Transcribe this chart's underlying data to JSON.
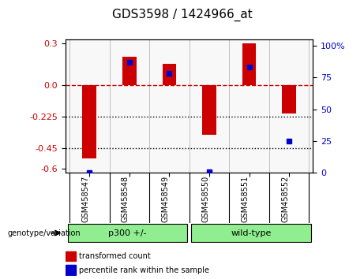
{
  "title": "GDS3598 / 1424966_at",
  "samples": [
    "GSM458547",
    "GSM458548",
    "GSM458549",
    "GSM458550",
    "GSM458551",
    "GSM458552"
  ],
  "red_values": [
    -0.525,
    0.205,
    0.155,
    -0.355,
    0.3,
    -0.205
  ],
  "blue_percentiles": [
    0.5,
    87.0,
    78.0,
    1.0,
    83.0,
    25.0
  ],
  "groups": [
    {
      "label": "p300 +/-",
      "samples": [
        "GSM458547",
        "GSM458548",
        "GSM458549"
      ],
      "color": "#90EE90"
    },
    {
      "label": "wild-type",
      "samples": [
        "GSM458550",
        "GSM458551",
        "GSM458552"
      ],
      "color": "#90EE90"
    }
  ],
  "group_label": "genotype/variation",
  "ylabel_left": "",
  "ylabel_right": "",
  "yticks_left": [
    0.3,
    0.0,
    -0.225,
    -0.45,
    -0.6
  ],
  "yticks_right": [
    100,
    75,
    50,
    25,
    0
  ],
  "ylim_left": [
    -0.63,
    0.33
  ],
  "ylim_right": [
    0,
    105
  ],
  "hline_y": 0.0,
  "dotted_lines": [
    -0.225,
    -0.45
  ],
  "bar_width": 0.35,
  "red_color": "#CC0000",
  "blue_color": "#0000CC",
  "legend_items": [
    "transformed count",
    "percentile rank within the sample"
  ],
  "background_color": "#ffffff",
  "plot_bg": "#ffffff",
  "grid_bg": "#f5f5f5"
}
